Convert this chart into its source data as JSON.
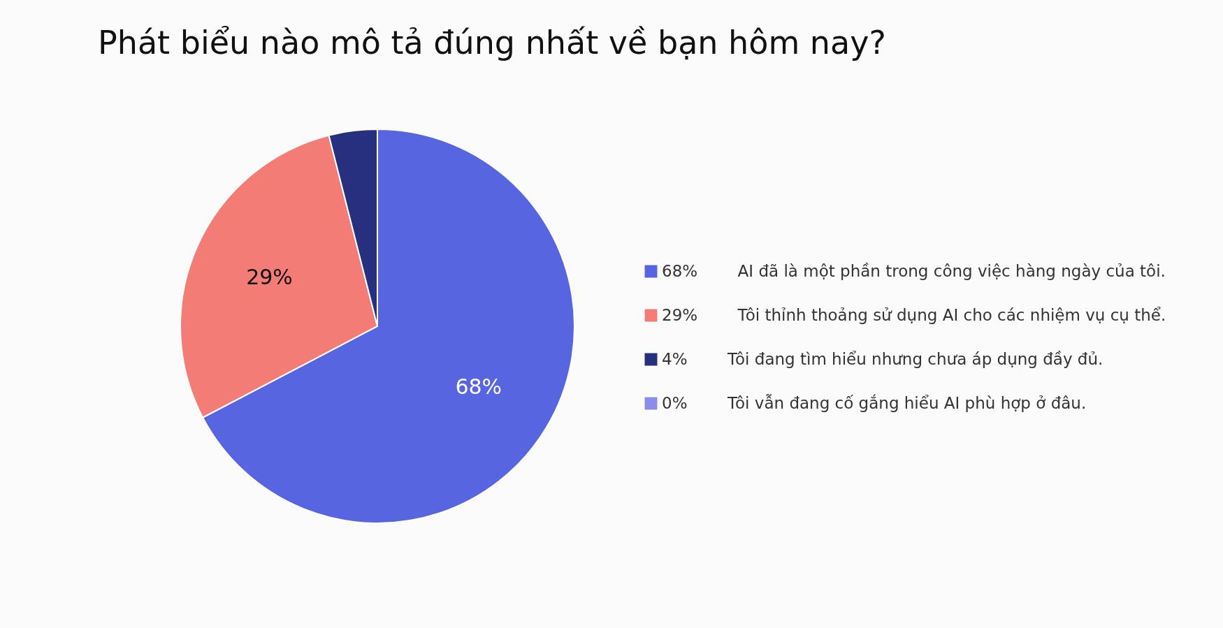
{
  "chart_data": {
    "type": "pie",
    "title": "Phát biểu nào mô tả đúng nhất về bạn hôm nay?",
    "categories": [
      "AI đã là một phần trong công việc hàng ngày của tôi.",
      "Tôi thỉnh thoảng sử dụng AI cho các nhiệm vụ cụ thể.",
      "Tôi đang tìm hiểu nhưng chưa áp dụng đầy đủ.",
      "Tôi vẫn đang cố gắng hiểu AI phù hợp ở đâu."
    ],
    "values": [
      68,
      29,
      4,
      0
    ],
    "value_labels": [
      "68%",
      "29%",
      "4%",
      "0%"
    ],
    "colors": [
      "#5865e0",
      "#f47c76",
      "#27307f",
      "#8a8ee8"
    ],
    "legend": "right"
  }
}
